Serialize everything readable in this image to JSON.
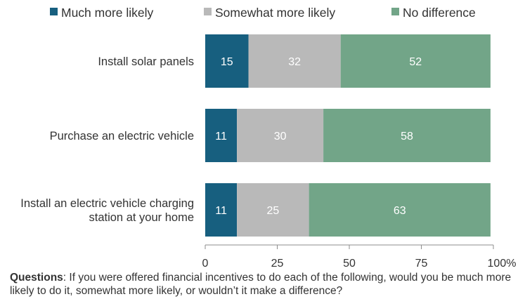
{
  "chart_data": {
    "type": "bar",
    "orientation": "horizontal",
    "stacked": true,
    "categories": [
      [
        "Install solar panels"
      ],
      [
        "Purchase an electric vehicle"
      ],
      [
        "Install an electric vehicle charging",
        "station at your home"
      ]
    ],
    "series": [
      {
        "name": "Much more likely",
        "color": "#175f7f",
        "values": [
          15,
          11,
          11
        ]
      },
      {
        "name": "Somewhat more likely",
        "color": "#b9b9b9",
        "values": [
          32,
          30,
          25
        ]
      },
      {
        "name": "No difference",
        "color": "#72a588",
        "values": [
          52,
          58,
          63
        ]
      }
    ],
    "xlim": [
      0,
      100
    ],
    "xticks": [
      "0",
      "25",
      "50",
      "75",
      "100%"
    ],
    "xtick_values": [
      0,
      25,
      50,
      75,
      100
    ],
    "legend_position": "top",
    "grid": false
  },
  "note": {
    "label": "Questions",
    "text": ": If you were offered financial incentives to do each of the following, would you be much more likely to do it, somewhat more likely, or wouldn’t it make a difference?"
  }
}
